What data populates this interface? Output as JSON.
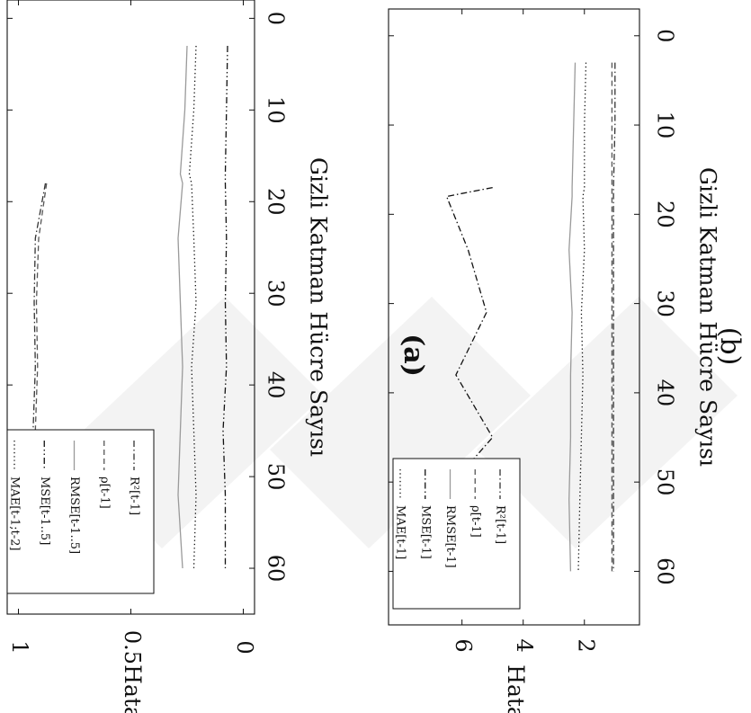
{
  "chart_data": [
    {
      "id": "a",
      "type": "line",
      "caption": "(a)",
      "xlabel": "Gizli Katman Hücre Sayısı",
      "ylabel": "Hata",
      "xlim": [
        -2,
        65
      ],
      "ylim": [
        -0.05,
        1.05
      ],
      "xticks": [
        0,
        10,
        20,
        30,
        40,
        50,
        60
      ],
      "xtick_labels": [
        "0",
        "10",
        "20",
        "30",
        "40",
        "50",
        "60"
      ],
      "yticks": [
        0,
        0.5,
        1
      ],
      "ytick_labels": [
        "0",
        "0.5",
        "1"
      ],
      "grid": false,
      "legend_position": "bottom-left",
      "x": [
        3,
        10,
        17,
        18,
        24,
        31,
        38,
        45,
        52,
        60
      ],
      "series": [
        {
          "name": "R²[t-1]",
          "style": "dashdot",
          "color": "#333333",
          "values": [
            null,
            null,
            null,
            0.88,
            0.925,
            0.93,
            0.925,
            0.935,
            0.93,
            0.94
          ]
        },
        {
          "name": "ρ[t-1]",
          "style": "dashed",
          "color": "#555555",
          "values": [
            null,
            null,
            null,
            0.875,
            0.91,
            0.92,
            0.915,
            0.925,
            0.92,
            0.93
          ]
        },
        {
          "name": "RMSE[t-1..5]",
          "style": "solid",
          "color": "#9a9a9a",
          "values": [
            0.25,
            0.26,
            0.28,
            0.27,
            0.29,
            0.28,
            0.27,
            0.28,
            0.29,
            0.27
          ]
        },
        {
          "name": "MSE[t-1..5]",
          "style": "dashdotdot",
          "color": "#111111",
          "values": [
            0.07,
            0.075,
            0.08,
            0.08,
            0.075,
            0.08,
            0.075,
            0.09,
            0.08,
            0.08
          ]
        },
        {
          "name": "MAE[t-1;t-2]",
          "style": "dotted",
          "color": "#111111",
          "values": [
            0.21,
            0.22,
            0.24,
            0.23,
            0.22,
            0.21,
            0.23,
            0.22,
            0.21,
            0.22
          ]
        }
      ]
    },
    {
      "id": "b",
      "type": "line",
      "caption": "(b)",
      "xlabel": "Gizli Katman Hücre Sayısı",
      "ylabel": "Hata",
      "xlim": [
        -3,
        66
      ],
      "ylim": [
        0.2,
        8.4
      ],
      "xticks": [
        0,
        10,
        20,
        30,
        40,
        50,
        60
      ],
      "xtick_labels": [
        "0",
        "10",
        "20",
        "30",
        "40",
        "50",
        "60"
      ],
      "yticks": [
        2,
        4,
        6
      ],
      "ytick_labels": [
        "2",
        "4",
        "6"
      ],
      "grid": false,
      "legend_position": "bottom-left",
      "x": [
        3,
        10,
        17,
        18,
        24,
        31,
        38,
        45,
        52,
        60
      ],
      "series": [
        {
          "name": "R²[t-1]",
          "style": "dashdot",
          "color": "#333333",
          "values": [
            1.0,
            1.0,
            1.05,
            1.05,
            1.05,
            1.05,
            1.05,
            1.05,
            1.05,
            1.05
          ]
        },
        {
          "name": "ρ[t-1]",
          "style": "dashed",
          "color": "#555555",
          "values": [
            1.1,
            1.1,
            1.1,
            1.1,
            1.1,
            1.1,
            1.1,
            1.1,
            1.1,
            1.1
          ]
        },
        {
          "name": "RMSE[t-1]",
          "style": "solid",
          "color": "#9a9a9a",
          "values": [
            2.3,
            2.35,
            2.4,
            2.4,
            2.5,
            2.4,
            2.45,
            2.45,
            2.5,
            2.45
          ]
        },
        {
          "name": "MSE[t-1]",
          "style": "dashdot",
          "color": "#111111",
          "values": [
            null,
            null,
            5.0,
            6.5,
            5.8,
            5.2,
            6.2,
            5.0,
            6.8,
            6.0
          ]
        },
        {
          "name": "MAE[t-1]",
          "style": "dotted",
          "color": "#111111",
          "values": [
            1.95,
            2.0,
            2.0,
            2.05,
            2.0,
            2.1,
            2.05,
            2.1,
            2.15,
            2.2
          ]
        }
      ]
    }
  ]
}
